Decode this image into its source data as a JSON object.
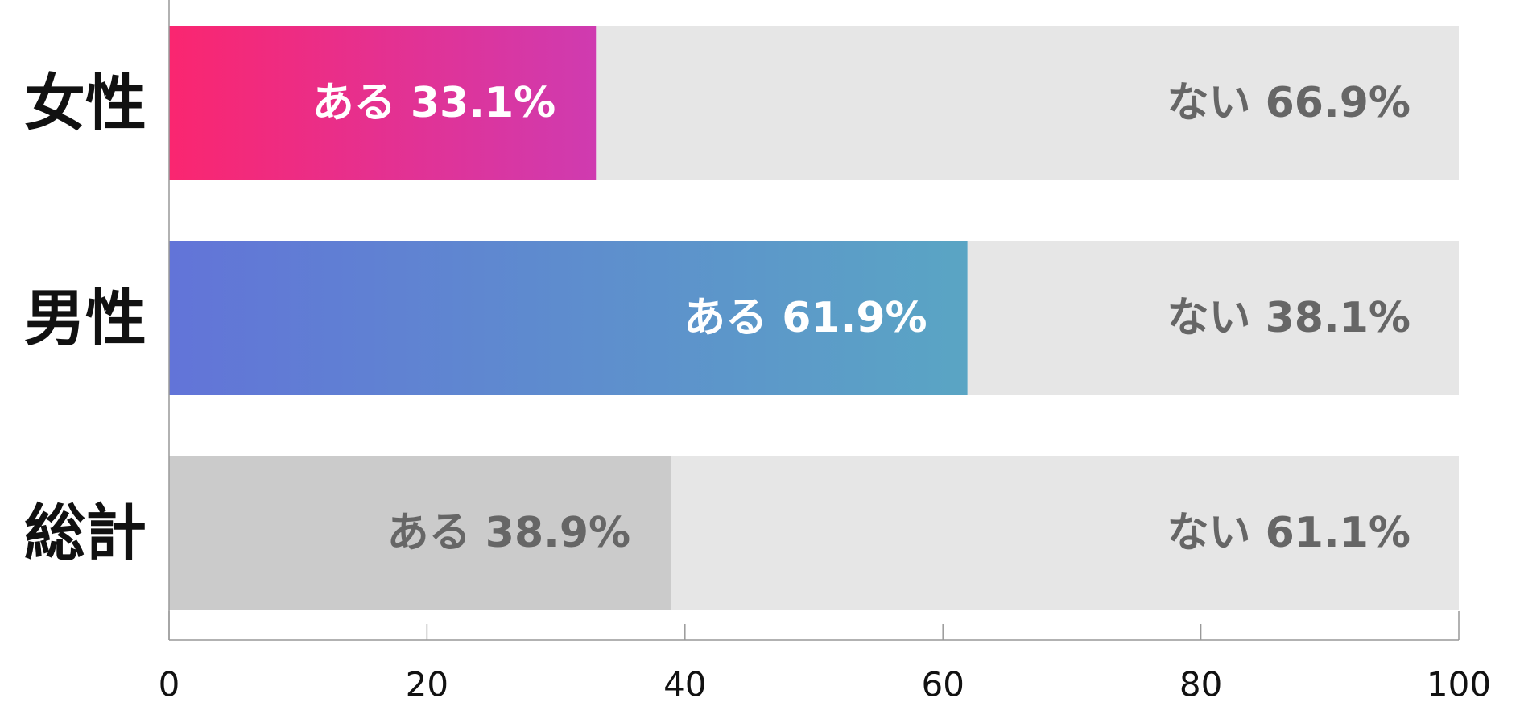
{
  "chart_data": {
    "type": "bar",
    "orientation": "horizontal",
    "stacked": true,
    "categories": [
      "女性",
      "男性",
      "総計"
    ],
    "series": [
      {
        "name": "ある",
        "values": [
          33.1,
          61.9,
          38.9
        ],
        "labels": [
          "ある 33.1%",
          "ある 61.9%",
          "ある 38.9%"
        ]
      },
      {
        "name": "ない",
        "values": [
          66.9,
          38.1,
          61.1
        ],
        "labels": [
          "ない 66.9%",
          "ない 38.1%",
          "ない 61.1%"
        ]
      }
    ],
    "xlim": [
      0,
      100
    ],
    "xticks": [
      0,
      20,
      40,
      60,
      80,
      100
    ],
    "xtick_labels": [
      "0",
      "20",
      "40",
      "60",
      "80",
      "100"
    ],
    "grid": false,
    "legend": "none"
  },
  "colors": {
    "female_gradient": [
      "#fa2670",
      "#cf3bb0"
    ],
    "male_gradient": [
      "#6274d8",
      "#5aa5c4"
    ],
    "total_bar": "#cbcbcb",
    "remainder_bar": "#e6e6e6",
    "label_on_color": "#ffffff",
    "label_on_gray": "#666666",
    "axis": "#999999"
  }
}
